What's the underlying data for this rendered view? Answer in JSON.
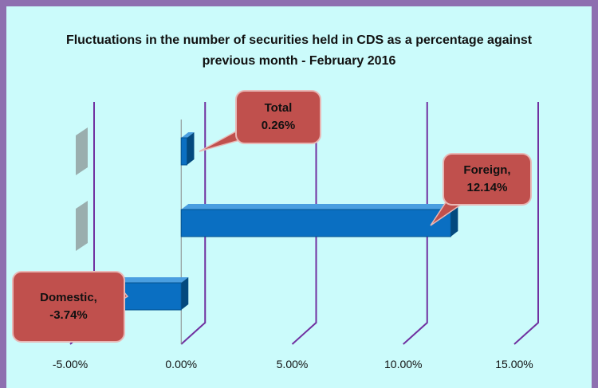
{
  "chart_data": {
    "type": "hbar3d",
    "title": "Fluctuations in the number of securities held in CDS as a percentage against previous month - February 2016",
    "categories": [
      "Total",
      "Foreign",
      "Domestic"
    ],
    "values": [
      0.26,
      12.14,
      -3.74
    ],
    "value_labels": [
      "Total\n0.26%",
      "Foreign,\n12.14%",
      "Domestic,\n-3.74%"
    ],
    "color": "#0a6fc2",
    "xlim": [
      -5,
      15
    ],
    "xticks": [
      {
        "value": -5,
        "label": "-5.00%"
      },
      {
        "value": 0,
        "label": "0.00%"
      },
      {
        "value": 5,
        "label": "5.00%"
      },
      {
        "value": 10,
        "label": "10.00%"
      },
      {
        "value": 15,
        "label": "15.00%"
      }
    ],
    "grid": true
  }
}
